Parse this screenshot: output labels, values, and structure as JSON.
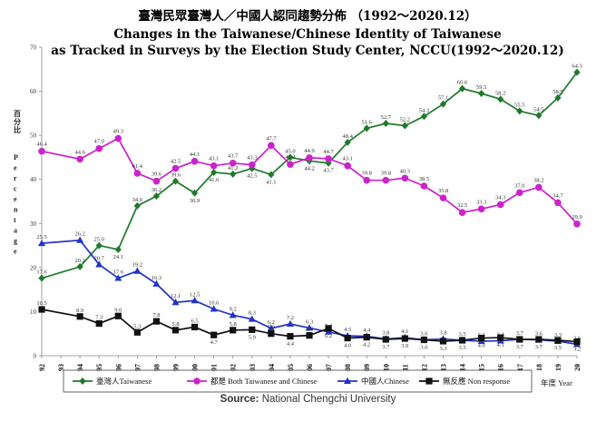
{
  "chart_data": {
    "type": "line",
    "title": "臺灣民眾臺灣人／中國人認同趨勢分佈 （1992～2020.12）",
    "subtitle_line1": "Changes in the Taiwanese/Chinese Identity of Taiwanese",
    "subtitle_line2": "as Tracked in Surveys by the Election Study Center, NCCU(1992～2020.12)",
    "ylabel_zh": "百分比",
    "ylabel_en": "Percentage",
    "xlabel": "年度 Year",
    "ylim": [
      0,
      70
    ],
    "yticks": [
      "0",
      "10",
      "20",
      "30",
      "40",
      "50",
      "60",
      "70"
    ],
    "x_ticks": [
      "92",
      "93",
      "94",
      "95",
      "96",
      "97",
      "98",
      "99",
      "00",
      "01",
      "02",
      "03",
      "04",
      "05",
      "06",
      "07",
      "08",
      "09",
      "10",
      "11",
      "12",
      "13",
      "14",
      "15",
      "16",
      "17",
      "18",
      "19",
      "20"
    ],
    "grid": false,
    "legend_position": "bottom",
    "series": [
      {
        "name": "臺灣人Taiwanese",
        "color": "#1e7a2a",
        "marker": "diamond",
        "x": [
          1992,
          1994,
          1995,
          1996,
          1997,
          1998,
          1999,
          2000,
          2001,
          2002,
          2003,
          2004,
          2005,
          2006,
          2007,
          2008,
          2009,
          2010,
          2011,
          2012,
          2013,
          2014,
          2015,
          2016,
          2017,
          2018,
          2019,
          2020
        ],
        "values": [
          17.6,
          20.2,
          25.0,
          24.1,
          34.0,
          36.2,
          39.6,
          36.9,
          41.6,
          41.2,
          42.5,
          41.1,
          45.0,
          44.2,
          43.7,
          48.4,
          51.6,
          52.7,
          52.2,
          54.3,
          57.1,
          60.6,
          59.5,
          58.2,
          55.5,
          54.5,
          58.5,
          64.3
        ],
        "labels": [
          "17.6",
          "20.2",
          "25.0",
          "24.1",
          "34.0",
          "36.2",
          "39.6",
          "36.9",
          "41.6",
          "41.2",
          "42.5",
          "41.1",
          "45.0",
          "44.2",
          "43.7",
          "48.4",
          "51.6",
          "52.7",
          "52.2",
          "54.3",
          "57.1",
          "60.6",
          "59.5",
          "58.2",
          "55.5",
          "54.5",
          "58.5",
          "64.3"
        ]
      },
      {
        "name": "都是 Both Taiwanese and Chinese",
        "color": "#cc22cc",
        "marker": "circle",
        "x": [
          1992,
          1994,
          1995,
          1996,
          1997,
          1998,
          1999,
          2000,
          2001,
          2002,
          2003,
          2004,
          2005,
          2006,
          2007,
          2008,
          2009,
          2010,
          2011,
          2012,
          2013,
          2014,
          2015,
          2016,
          2017,
          2018,
          2019,
          2020
        ],
        "values": [
          46.4,
          44.6,
          47.0,
          49.3,
          41.4,
          39.6,
          42.5,
          44.1,
          43.1,
          43.7,
          43.3,
          47.7,
          43.4,
          44.9,
          44.7,
          43.1,
          39.8,
          39.8,
          40.3,
          38.5,
          35.8,
          32.5,
          33.3,
          34.3,
          37.0,
          38.2,
          34.7,
          29.9
        ],
        "labels": [
          "46.4",
          "44.6",
          "47.0",
          "49.3",
          "41.4",
          "39.6",
          "42.5",
          "44.1",
          "43.1",
          "43.7",
          "43.3",
          "47.7",
          "43.4",
          "44.9",
          "44.7",
          "43.1",
          "39.8",
          "39.8",
          "40.3",
          "38.5",
          "35.8",
          "32.5",
          "33.3",
          "34.3",
          "37.0",
          "38.2",
          "34.7",
          "29.9"
        ]
      },
      {
        "name": "中國人Chinese",
        "color": "#2233cc",
        "marker": "triangle",
        "x": [
          1992,
          1994,
          1995,
          1996,
          1997,
          1998,
          1999,
          2000,
          2001,
          2002,
          2003,
          2004,
          2005,
          2006,
          2007,
          2008,
          2009,
          2010,
          2011,
          2012,
          2013,
          2014,
          2015,
          2016,
          2017,
          2018,
          2019,
          2020
        ],
        "values": [
          25.5,
          26.2,
          20.7,
          17.6,
          19.2,
          16.3,
          12.1,
          12.5,
          10.6,
          9.2,
          8.3,
          6.2,
          7.2,
          6.3,
          5.4,
          4.5,
          4.4,
          3.8,
          4.1,
          3.6,
          3.8,
          3.5,
          3.3,
          3.4,
          3.7,
          3.6,
          3.3,
          2.6
        ],
        "labels": [
          "25.5",
          "26.2",
          "20.7",
          "17.6",
          "19.2",
          "16.3",
          "12.1",
          "12.5",
          "10.6",
          "9.2",
          "8.3",
          "6.2",
          "7.2",
          "6.3",
          "5.4",
          "4.5",
          "4.4",
          "3.8",
          "4.1",
          "3.6",
          "3.8",
          "3.5",
          "3.3",
          "3.4",
          "3.7",
          "3.6",
          "3.3",
          "2.6"
        ]
      },
      {
        "name": "無反應 Non response",
        "color": "#111111",
        "marker": "square",
        "x": [
          1992,
          1994,
          1995,
          1996,
          1997,
          1998,
          1999,
          2000,
          2001,
          2002,
          2003,
          2004,
          2005,
          2006,
          2007,
          2008,
          2009,
          2010,
          2011,
          2012,
          2013,
          2014,
          2015,
          2016,
          2017,
          2018,
          2019,
          2020
        ],
        "values": [
          10.5,
          8.9,
          7.3,
          9.0,
          5.3,
          7.8,
          5.8,
          6.5,
          4.7,
          5.8,
          5.9,
          5.0,
          4.4,
          4.6,
          6.2,
          4.0,
          4.2,
          3.7,
          3.9,
          3.6,
          3.3,
          3.5,
          4.0,
          4.1,
          3.7,
          3.7,
          3.5,
          3.2
        ],
        "labels": [
          "10.5",
          "8.9",
          "7.3",
          "9.0",
          "5.3",
          "7.8",
          "5.8",
          "6.5",
          "4.7",
          "5.8",
          "5.9",
          "5.0",
          "4.4",
          "4.6",
          "6.2",
          "4.0",
          "4.2",
          "3.7",
          "3.9",
          "3.6",
          "3.3",
          "3.5",
          "4.0",
          "4.1",
          "3.7",
          "3.7",
          "3.5",
          "3.2"
        ]
      }
    ]
  },
  "source": {
    "prefix": "Source:",
    "text": "National Chengchi University"
  }
}
